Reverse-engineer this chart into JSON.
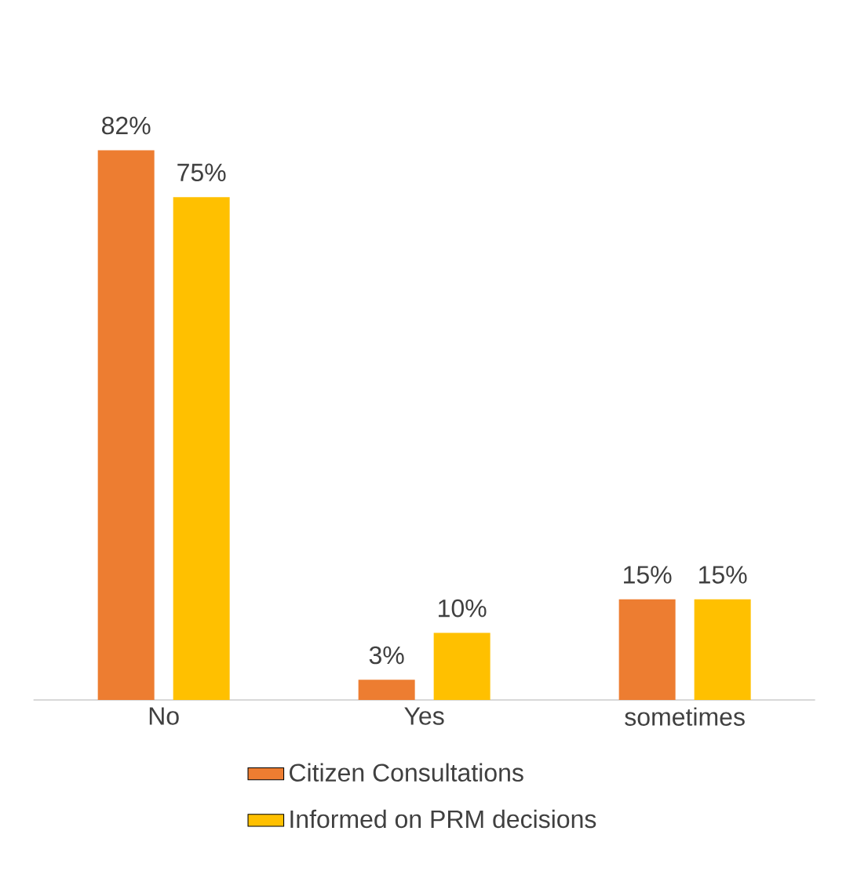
{
  "chart_data": {
    "type": "bar",
    "categories": [
      "No",
      "Yes",
      "sometimes"
    ],
    "series": [
      {
        "name": "Citizen Consultations",
        "color": "#ed7d31",
        "values": [
          82,
          3,
          15
        ],
        "value_labels": [
          "82%",
          "3%",
          "15%"
        ]
      },
      {
        "name": "Informed on PRM decisions",
        "color": "#ffc000",
        "values": [
          75,
          10,
          15
        ],
        "value_labels": [
          "75%",
          "10%",
          "15%"
        ]
      }
    ],
    "legend": "bottom"
  }
}
